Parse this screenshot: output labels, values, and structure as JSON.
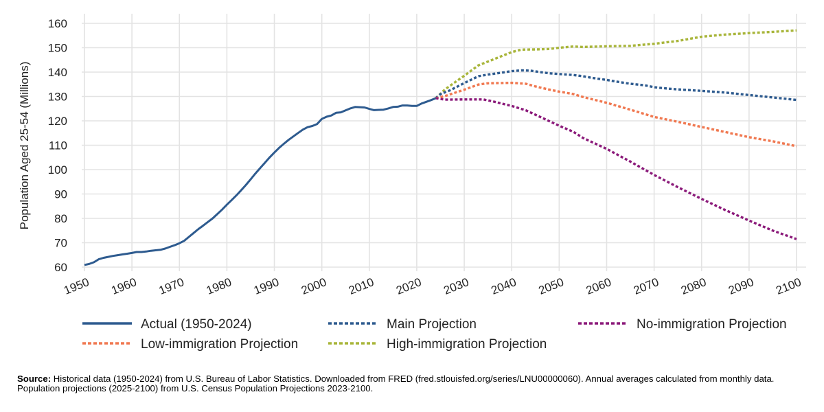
{
  "chart_data": {
    "type": "line",
    "ylabel": "Population Aged 25-54 (Millions)",
    "xlabel": "",
    "xlim": [
      1950,
      2100
    ],
    "ylim": [
      60,
      160
    ],
    "x_ticks": [
      "1950",
      "1960",
      "1970",
      "1980",
      "1990",
      "2000",
      "2010",
      "2020",
      "2030",
      "2040",
      "2050",
      "2060",
      "2070",
      "2080",
      "2090",
      "2100"
    ],
    "y_ticks": [
      "60",
      "70",
      "80",
      "90",
      "100",
      "110",
      "120",
      "130",
      "140",
      "150",
      "160"
    ],
    "grid": true,
    "legend_position": "bottom",
    "series": [
      {
        "name": "Actual (1950-2024)",
        "color": "#2e5b8f",
        "style": "solid",
        "x": [
          1950,
          1951,
          1952,
          1953,
          1954,
          1955,
          1956,
          1957,
          1958,
          1959,
          1960,
          1961,
          1962,
          1963,
          1964,
          1965,
          1966,
          1967,
          1968,
          1969,
          1970,
          1971,
          1972,
          1973,
          1974,
          1975,
          1976,
          1977,
          1978,
          1979,
          1980,
          1981,
          1982,
          1983,
          1984,
          1985,
          1986,
          1987,
          1988,
          1989,
          1990,
          1991,
          1992,
          1993,
          1994,
          1995,
          1996,
          1997,
          1998,
          1999,
          2000,
          2001,
          2002,
          2003,
          2004,
          2005,
          2006,
          2007,
          2008,
          2009,
          2010,
          2011,
          2012,
          2013,
          2014,
          2015,
          2016,
          2017,
          2018,
          2019,
          2020,
          2021,
          2022,
          2023,
          2024
        ],
        "values": [
          60.9,
          61.3,
          62.0,
          63.2,
          63.8,
          64.2,
          64.6,
          64.9,
          65.2,
          65.5,
          65.8,
          66.2,
          66.2,
          66.4,
          66.7,
          66.9,
          67.1,
          67.6,
          68.3,
          69.0,
          69.8,
          70.8,
          72.4,
          74.0,
          75.6,
          77.0,
          78.5,
          80.0,
          81.8,
          83.6,
          85.6,
          87.5,
          89.4,
          91.5,
          93.7,
          96.0,
          98.4,
          100.6,
          102.8,
          105.0,
          107.0,
          108.9,
          110.6,
          112.2,
          113.6,
          115.0,
          116.4,
          117.4,
          117.9,
          118.7,
          120.8,
          121.7,
          122.2,
          123.3,
          123.5,
          124.3,
          125.1,
          125.7,
          125.6,
          125.5,
          124.9,
          124.4,
          124.5,
          124.6,
          125.1,
          125.7,
          125.8,
          126.3,
          126.3,
          126.1,
          126.1,
          127.1,
          127.8,
          128.5,
          129.3
        ]
      },
      {
        "name": "Main Projection",
        "color": "#2e5b8f",
        "style": "dotted",
        "x": [
          2024,
          2025,
          2027,
          2030,
          2033,
          2035,
          2038,
          2040,
          2042,
          2044,
          2046,
          2048,
          2050,
          2053,
          2055,
          2057,
          2060,
          2063,
          2065,
          2068,
          2070,
          2073,
          2075,
          2080,
          2085,
          2090,
          2095,
          2100
        ],
        "values": [
          129.3,
          131.0,
          132.5,
          135.5,
          138.3,
          139.0,
          139.8,
          140.4,
          140.7,
          140.6,
          140.0,
          139.5,
          139.2,
          138.8,
          138.3,
          137.6,
          136.8,
          135.8,
          135.2,
          134.6,
          133.8,
          133.2,
          132.9,
          132.3,
          131.6,
          130.6,
          129.6,
          128.6
        ]
      },
      {
        "name": "No-immigration Projection",
        "color": "#8b1a7a",
        "style": "dotted",
        "x": [
          2024,
          2026,
          2030,
          2034,
          2036,
          2040,
          2043,
          2046,
          2050,
          2053,
          2055,
          2060,
          2065,
          2070,
          2075,
          2080,
          2085,
          2090,
          2095,
          2100
        ],
        "values": [
          129.3,
          128.7,
          128.8,
          128.8,
          128.0,
          126.1,
          124.3,
          121.6,
          118.0,
          115.5,
          113.0,
          108.5,
          103.3,
          97.8,
          92.8,
          88.0,
          83.4,
          79.1,
          75.0,
          71.5
        ]
      },
      {
        "name": "Low-immigration Projection",
        "color": "#f07850",
        "style": "dotted",
        "x": [
          2024,
          2026,
          2030,
          2033,
          2035,
          2040,
          2043,
          2045,
          2048,
          2050,
          2053,
          2055,
          2060,
          2065,
          2070,
          2075,
          2080,
          2085,
          2090,
          2095,
          2100
        ],
        "values": [
          129.3,
          130.2,
          132.8,
          134.9,
          135.4,
          135.6,
          135.2,
          134.1,
          132.8,
          132.0,
          131.0,
          129.8,
          127.4,
          124.6,
          121.6,
          119.6,
          117.5,
          115.4,
          113.3,
          111.6,
          109.6
        ]
      },
      {
        "name": "High-immigration Projection",
        "color": "#a8b53a",
        "style": "dotted",
        "x": [
          2024,
          2026,
          2030,
          2033,
          2035,
          2040,
          2042,
          2045,
          2048,
          2050,
          2053,
          2055,
          2060,
          2065,
          2070,
          2075,
          2080,
          2085,
          2090,
          2095,
          2100
        ],
        "values": [
          129.3,
          133.0,
          138.5,
          142.8,
          144.3,
          148.2,
          149.2,
          149.3,
          149.5,
          150.0,
          150.5,
          150.3,
          150.6,
          150.8,
          151.6,
          152.8,
          154.5,
          155.4,
          156.0,
          156.5,
          157.1
        ]
      }
    ],
    "legend_order": [
      0,
      1,
      2,
      3,
      4
    ]
  },
  "source": {
    "label": "Source:",
    "text": "Historical data (1950-2024) from U.S. Bureau of Labor Statistics. Downloaded from FRED (fred.stlouisfed.org/series/LNU00000060). Annual averages calculated from monthly data. Population projections (2025-2100) from U.S. Census Population Projections 2023-2100."
  }
}
